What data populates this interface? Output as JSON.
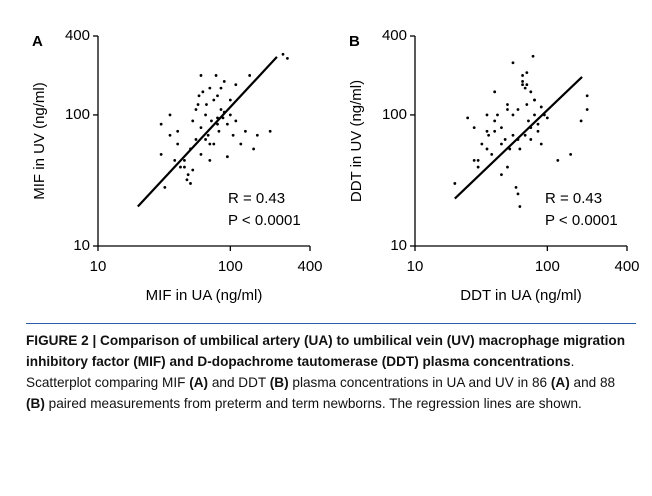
{
  "chart_data": [
    {
      "type": "scatter",
      "panel_label": "A",
      "xlabel": "MIF in UA (ng/ml)",
      "ylabel": "MIF in UV (ng/ml)",
      "log_scale": true,
      "color": "#000000",
      "xlim": [
        10,
        400
      ],
      "ylim": [
        10,
        400
      ],
      "xticks": [
        10,
        100,
        400
      ],
      "yticks": [
        10,
        100,
        400
      ],
      "x": [
        30,
        32,
        35,
        38,
        40,
        42,
        45,
        47,
        50,
        52,
        55,
        57,
        60,
        62,
        65,
        68,
        70,
        72,
        75,
        78,
        80,
        82,
        85,
        88,
        90,
        95,
        100,
        105,
        110,
        120,
        130,
        140,
        150,
        160,
        200,
        250,
        270,
        30,
        35,
        40,
        45,
        50,
        55,
        60,
        65,
        70,
        75,
        80,
        85,
        90,
        95,
        100,
        110,
        60,
        70,
        80,
        48,
        52,
        58,
        66
      ],
      "y": [
        85,
        28,
        70,
        45,
        60,
        40,
        45,
        32,
        55,
        38,
        65,
        120,
        80,
        150,
        100,
        70,
        160,
        90,
        60,
        200,
        140,
        75,
        110,
        95,
        180,
        85,
        130,
        70,
        90,
        60,
        75,
        200,
        55,
        70,
        75,
        290,
        270,
        50,
        100,
        75,
        40,
        30,
        110,
        50,
        65,
        45,
        130,
        85,
        160,
        105,
        48,
        100,
        170,
        200,
        60,
        95,
        35,
        90,
        140,
        120
      ],
      "regression": {
        "x": [
          20,
          225
        ],
        "y": [
          20,
          277
        ]
      },
      "annotations": [
        "R = 0.43",
        "P < 0.0001"
      ]
    },
    {
      "type": "scatter",
      "panel_label": "B",
      "xlabel": "DDT in UA (ng/ml)",
      "ylabel": "DDT in UV (ng/ml)",
      "log_scale": true,
      "color": "#000000",
      "xlim": [
        10,
        400
      ],
      "ylim": [
        10,
        400
      ],
      "xticks": [
        10,
        100,
        400
      ],
      "yticks": [
        10,
        100,
        400
      ],
      "x": [
        20,
        25,
        28,
        30,
        32,
        35,
        36,
        38,
        40,
        42,
        45,
        48,
        50,
        52,
        55,
        58,
        60,
        62,
        65,
        68,
        70,
        72,
        75,
        78,
        80,
        85,
        90,
        95,
        100,
        120,
        150,
        180,
        200,
        200,
        30,
        35,
        40,
        45,
        50,
        55,
        60,
        65,
        70,
        75,
        80,
        85,
        40,
        45,
        55,
        60,
        65,
        70,
        75,
        50,
        35,
        28,
        62,
        68,
        80,
        90
      ],
      "y": [
        30,
        95,
        45,
        40,
        60,
        75,
        70,
        50,
        150,
        100,
        80,
        65,
        120,
        55,
        250,
        28,
        110,
        20,
        200,
        70,
        170,
        90,
        80,
        280,
        130,
        85,
        60,
        100,
        95,
        45,
        50,
        90,
        140,
        110,
        45,
        55,
        75,
        60,
        40,
        100,
        65,
        180,
        210,
        150,
        100,
        75,
        90,
        35,
        70,
        25,
        170,
        120,
        65,
        110,
        100,
        80,
        55,
        160,
        130,
        115
      ],
      "regression": {
        "x": [
          20,
          183
        ],
        "y": [
          23,
          195
        ]
      },
      "annotations": [
        "R = 0.43",
        "P < 0.0001"
      ]
    }
  ],
  "caption": [
    {
      "text": "FIGURE 2 | Comparison of umbilical artery (UA) to umbilical vein (UV) macrophage migration inhibitory factor (MIF) and D-dopachrome tautomerase (DDT) plasma concentrations",
      "bold": true
    },
    {
      "text": ". Scatterplot comparing MIF ",
      "bold": false
    },
    {
      "text": "(A)",
      "bold": true
    },
    {
      "text": " and DDT ",
      "bold": false
    },
    {
      "text": "(B)",
      "bold": true
    },
    {
      "text": " plasma concentrations in UA and UV in 86 ",
      "bold": false
    },
    {
      "text": "(A)",
      "bold": true
    },
    {
      "text": " and 88 ",
      "bold": false
    },
    {
      "text": "(B)",
      "bold": true
    },
    {
      "text": " paired measurements from preterm and term newborns. The regression lines are shown.",
      "bold": false
    }
  ]
}
